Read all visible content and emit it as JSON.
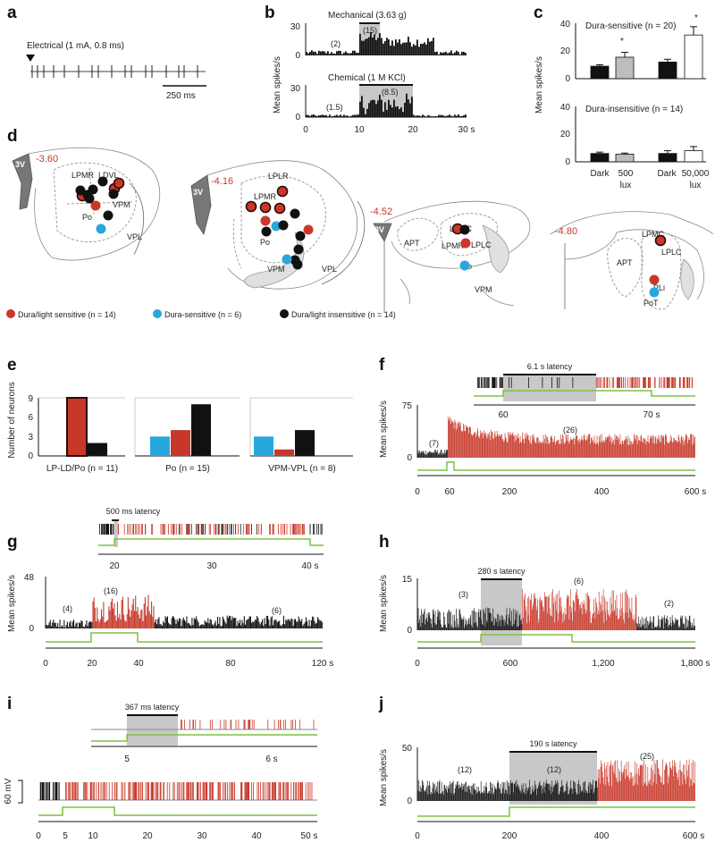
{
  "colors": {
    "red": "#c8382a",
    "blue": "#27a8dc",
    "black": "#111111",
    "green": "#7cc241",
    "gray": "#c8c8c8",
    "lightgray": "#bdbdbd",
    "white": "#ffffff",
    "dark_red_border": "#5a1a10"
  },
  "panels": {
    "a": "a",
    "b": "b",
    "c": "c",
    "d": "d",
    "e": "e",
    "f": "f",
    "g": "g",
    "h": "h",
    "i": "i",
    "j": "j"
  },
  "panel_a": {
    "label": "Electrical (1 mA, 0.8 ms)",
    "scalebar": "250 ms"
  },
  "panel_b": {
    "ylabel": "Mean spikes/s",
    "xunit": "s",
    "x_ticks": [
      "0",
      "10",
      "20",
      "30 s"
    ],
    "mech": {
      "title": "Mechanical (3.63 g)",
      "ticks": [
        "30",
        "0"
      ],
      "base": "(2)",
      "stim": "(15)"
    },
    "chem": {
      "title": "Chemical (1 M KCl)",
      "ticks": [
        "30",
        "0"
      ],
      "base": "(1.5)",
      "stim": "(8.5)"
    }
  },
  "panel_c": {
    "ylabel": "Mean spikes/s",
    "top_title": "Dura-sensitive (n = 20)",
    "bottom_title": "Dura-insensitive (n = 14)",
    "ticks": [
      "40",
      "20",
      "0"
    ],
    "star": "*",
    "xlabels": [
      "Dark",
      "500",
      "lux",
      "Dark",
      "50,000",
      "lux"
    ]
  },
  "panel_d": {
    "sections": [
      {
        "coord": "-3.60",
        "labels": [
          "3V",
          "LPMR",
          "LDVL",
          "Po",
          "VPM",
          "VPL"
        ]
      },
      {
        "coord": "-4.16",
        "labels": [
          "3V",
          "LPLR",
          "LPMR",
          "Po",
          "VPM",
          "VPL"
        ]
      },
      {
        "coord": "-4.52",
        "labels": [
          "3V",
          "APT",
          "LPMC",
          "LPMR",
          "LPLC",
          "Po",
          "VPM"
        ]
      },
      {
        "coord": "-4.80",
        "labels": [
          "APT",
          "LPMC",
          "LPLC",
          "PLi",
          "PoT"
        ]
      }
    ],
    "legend": [
      "Dura/light sensitive (n = 14)",
      "Dura-sensitive (n = 6)",
      "Dura/light insensitive (n = 14)"
    ]
  },
  "panel_e": {
    "ylabel": "Number of neurons",
    "ticks": [
      "9",
      "6",
      "3",
      "0"
    ],
    "groups": [
      "LP-LD/Po (n = 11)",
      "Po (n = 15)",
      "VPM-VPL (n = 8)"
    ]
  },
  "panel_f": {
    "latency": "6.1 s latency",
    "inset_ticks": [
      "60",
      "70 s"
    ],
    "ylabel": "Mean spikes/s",
    "y_ticks": [
      "75",
      "0"
    ],
    "x_ticks": [
      "0",
      "60",
      "200",
      "400",
      "600 s"
    ],
    "base": "(7)",
    "resp": "(26)"
  },
  "panel_g": {
    "latency": "500 ms latency",
    "inset_ticks": [
      "20",
      "30",
      "40 s"
    ],
    "ylabel": "Mean spikes/s",
    "y_ticks": [
      "48",
      "0"
    ],
    "x_ticks": [
      "0",
      "20",
      "40",
      "80",
      "120 s"
    ],
    "base": "(4)",
    "resp": "(16)",
    "after": "(6)"
  },
  "panel_h": {
    "latency": "280 s latency",
    "ylabel": "Mean spikes/s",
    "y_ticks": [
      "15",
      "0"
    ],
    "x_ticks": [
      "0",
      "600",
      "1,200",
      "1,800 s"
    ],
    "base": "(3)",
    "resp": "(6)",
    "after": "(2)"
  },
  "panel_i": {
    "latency": "367 ms latency",
    "inset_ticks": [
      "5",
      "6 s"
    ],
    "scale": "60 mV",
    "x_ticks": [
      "0",
      "5",
      "10",
      "20",
      "30",
      "40",
      "50 s"
    ]
  },
  "panel_j": {
    "latency": "190 s latency",
    "ylabel": "Mean spikes/s",
    "y_ticks": [
      "50",
      "0"
    ],
    "x_ticks": [
      "0",
      "200",
      "400",
      "600 s"
    ],
    "base": "(12)",
    "mid": "(12)",
    "resp": "(25)"
  },
  "chart_data": [
    {
      "type": "bar",
      "panel": "b",
      "title": "Mechanical (3.63 g)",
      "xlabel": "",
      "ylabel": "Mean spikes/s",
      "xlim": [
        0,
        30
      ],
      "ylim": [
        0,
        30
      ],
      "stim_window": [
        10,
        14
      ],
      "baseline_mean": 2,
      "response_mean": 15
    },
    {
      "type": "bar",
      "panel": "b",
      "title": "Chemical (1 M KCl)",
      "xlabel": "",
      "ylabel": "Mean spikes/s",
      "xlim": [
        0,
        30
      ],
      "ylim": [
        0,
        30
      ],
      "stim_window": [
        10,
        20
      ],
      "baseline_mean": 1.5,
      "response_mean": 8.5
    },
    {
      "type": "bar",
      "panel": "c",
      "title": "Dura-sensitive (n = 20)",
      "ylabel": "Mean spikes/s",
      "ylim": [
        0,
        40
      ],
      "categories": [
        "Dark",
        "500 lux",
        "Dark",
        "50,000 lux"
      ],
      "values": [
        9,
        15.5,
        12,
        31.5
      ],
      "errors": [
        1,
        3.5,
        2,
        6
      ]
    },
    {
      "type": "bar",
      "panel": "c",
      "title": "Dura-insensitive (n = 14)",
      "ylabel": "Mean spikes/s",
      "ylim": [
        0,
        40
      ],
      "categories": [
        "Dark",
        "500 lux",
        "Dark",
        "50,000 lux"
      ],
      "values": [
        6,
        5.5,
        6,
        8
      ],
      "errors": [
        1,
        0.8,
        2,
        3
      ]
    },
    {
      "type": "bar",
      "panel": "e",
      "ylabel": "Number of neurons",
      "ylim": [
        0,
        9
      ],
      "categories": [
        "LP-LD/Po (n = 11)",
        "Po (n = 15)",
        "VPM-VPL (n = 8)"
      ],
      "series": [
        {
          "name": "Dura-sensitive",
          "values": [
            0,
            3,
            3
          ]
        },
        {
          "name": "Dura/light sensitive",
          "values": [
            9,
            4,
            1
          ]
        },
        {
          "name": "Dura/light insensitive",
          "values": [
            2,
            8,
            4
          ]
        }
      ]
    },
    {
      "type": "bar",
      "panel": "f",
      "ylabel": "Mean spikes/s",
      "xlim": [
        0,
        600
      ],
      "ylim": [
        0,
        75
      ],
      "light_on": 60,
      "latency_s": 6.1,
      "baseline_mean": 7,
      "response_mean": 26
    },
    {
      "type": "bar",
      "panel": "g",
      "ylabel": "Mean spikes/s",
      "xlim": [
        0,
        120
      ],
      "ylim": [
        0,
        48
      ],
      "light_on": [
        20,
        40
      ],
      "latency_s": 0.5,
      "baseline_mean": 4,
      "response_mean": 16,
      "after_mean": 6
    },
    {
      "type": "bar",
      "panel": "h",
      "ylabel": "Mean spikes/s",
      "xlim": [
        0,
        1800
      ],
      "ylim": [
        0,
        15
      ],
      "light_on": [
        400,
        1000
      ],
      "latency_s": 280,
      "baseline_mean": 3,
      "response_mean": 6,
      "after_mean": 2
    },
    {
      "type": "line",
      "panel": "i",
      "xlim": [
        0,
        52
      ],
      "light_on": [
        5,
        15
      ],
      "latency_ms": 367
    },
    {
      "type": "bar",
      "panel": "j",
      "ylabel": "Mean spikes/s",
      "xlim": [
        0,
        600
      ],
      "ylim": [
        0,
        50
      ],
      "light_on": 200,
      "latency_s": 190,
      "baseline_mean": 12,
      "mid_mean": 12,
      "response_mean": 25
    }
  ]
}
